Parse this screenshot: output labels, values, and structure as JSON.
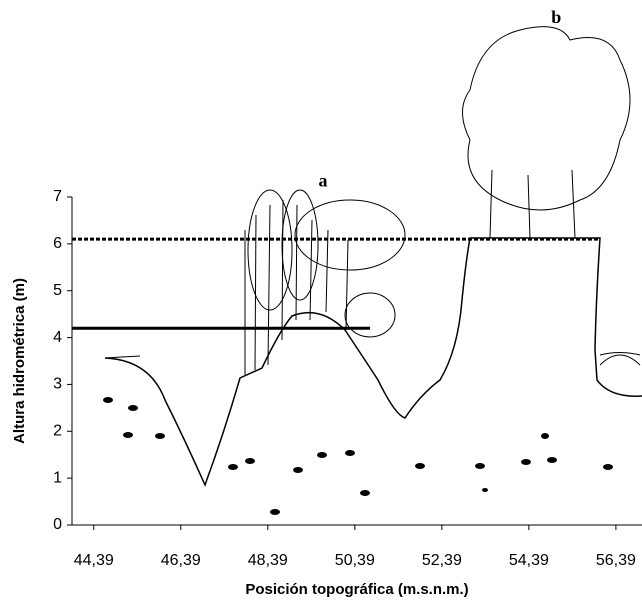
{
  "chart_data": {
    "type": "reference",
    "x_label": "Posición topográfica (m.s.n.m.)",
    "y_label": "Altura hidrométrica (m)",
    "xlim": [
      43.89,
      56.99
    ],
    "ylim": [
      0,
      7
    ],
    "xticks": [
      {
        "value": 44.39,
        "label": "44,39"
      },
      {
        "value": 46.39,
        "label": "46,39"
      },
      {
        "value": 48.39,
        "label": "48,39"
      },
      {
        "value": 50.39,
        "label": "50,39"
      },
      {
        "value": 52.39,
        "label": "52,39"
      },
      {
        "value": 54.39,
        "label": "54,39"
      },
      {
        "value": 56.39,
        "label": "56,39"
      }
    ],
    "yticks": [
      0,
      1,
      2,
      3,
      4,
      5,
      6,
      7
    ],
    "lines": [
      {
        "y": 6.1,
        "x": [
          43.89,
          56.03
        ],
        "style": "dashed",
        "color": "#000000"
      },
      {
        "y": 4.2,
        "x": [
          43.89,
          50.74
        ],
        "style": "solid",
        "color": "#000000"
      }
    ],
    "annotations": [
      {
        "text": "a",
        "x": 49.66,
        "y": 7.31
      },
      {
        "text": "b",
        "x": 55.02,
        "y": 10.8
      }
    ]
  }
}
